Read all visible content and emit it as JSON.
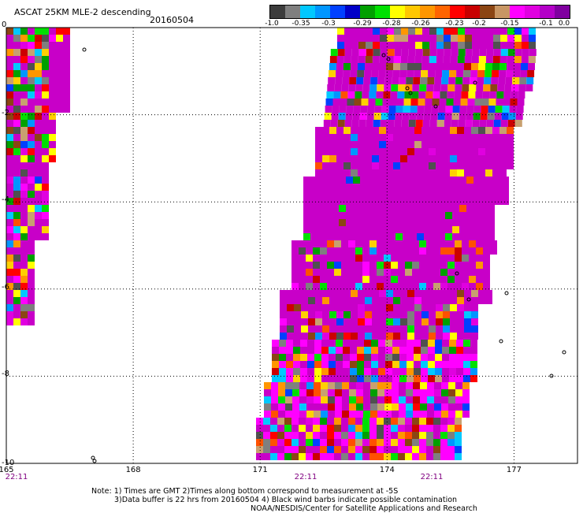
{
  "header": {
    "title": "ASCAT 25KM MLE-2 descending",
    "date": "20160504"
  },
  "colorbar": {
    "colors": [
      "#3c3c3c",
      "#7f7f7f",
      "#00c8ff",
      "#0096ff",
      "#0040ff",
      "#0000c8",
      "#00a000",
      "#00e000",
      "#ffff00",
      "#ffc800",
      "#ff9600",
      "#ff6400",
      "#ff0000",
      "#c80000",
      "#8b4513",
      "#c89664",
      "#ff00ff",
      "#e000e0",
      "#b400c8",
      "#8000a0"
    ],
    "labels": [
      "-1.0",
      "-0.35",
      "-0.3",
      "-0.29",
      "-0.28",
      "-0.26",
      "-0.23",
      "-0.2",
      "-0.15",
      "-0.1",
      "0.0"
    ]
  },
  "axes": {
    "lat_labels": [
      "0",
      "-2",
      "-4",
      "-6",
      "-8",
      "-10"
    ],
    "lon_labels": [
      "165",
      "168",
      "171",
      "174",
      "177"
    ],
    "time_labels": [
      "22:11",
      "22:11",
      "22:11"
    ]
  },
  "notes": {
    "line1": "Note: 1) Times are GMT 2)Times along bottom correspond to measurement at -5S",
    "line2": "3)Data buffer is 22 hrs from 20160504 4) Black wind barbs indicate possible contamination",
    "line3": "NOAA/NESDIS/Center for Satellite Applications and Research"
  },
  "map_data": {
    "lon_range": [
      165,
      178.5
    ],
    "lat_range": [
      -10,
      0
    ],
    "palette": {
      "dominant": "#c800c8",
      "mixed": [
        "#ffd000",
        "#ff9600",
        "#ff5000",
        "#ff0000",
        "#cc0000",
        "#8b4513",
        "#c8a070",
        "#ff00ff",
        "#e000e0",
        "#0096ff",
        "#0040ff",
        "#00a000",
        "#00e000",
        "#ffff00",
        "#7f7f7f",
        "#505050",
        "#00c8ff"
      ]
    }
  }
}
